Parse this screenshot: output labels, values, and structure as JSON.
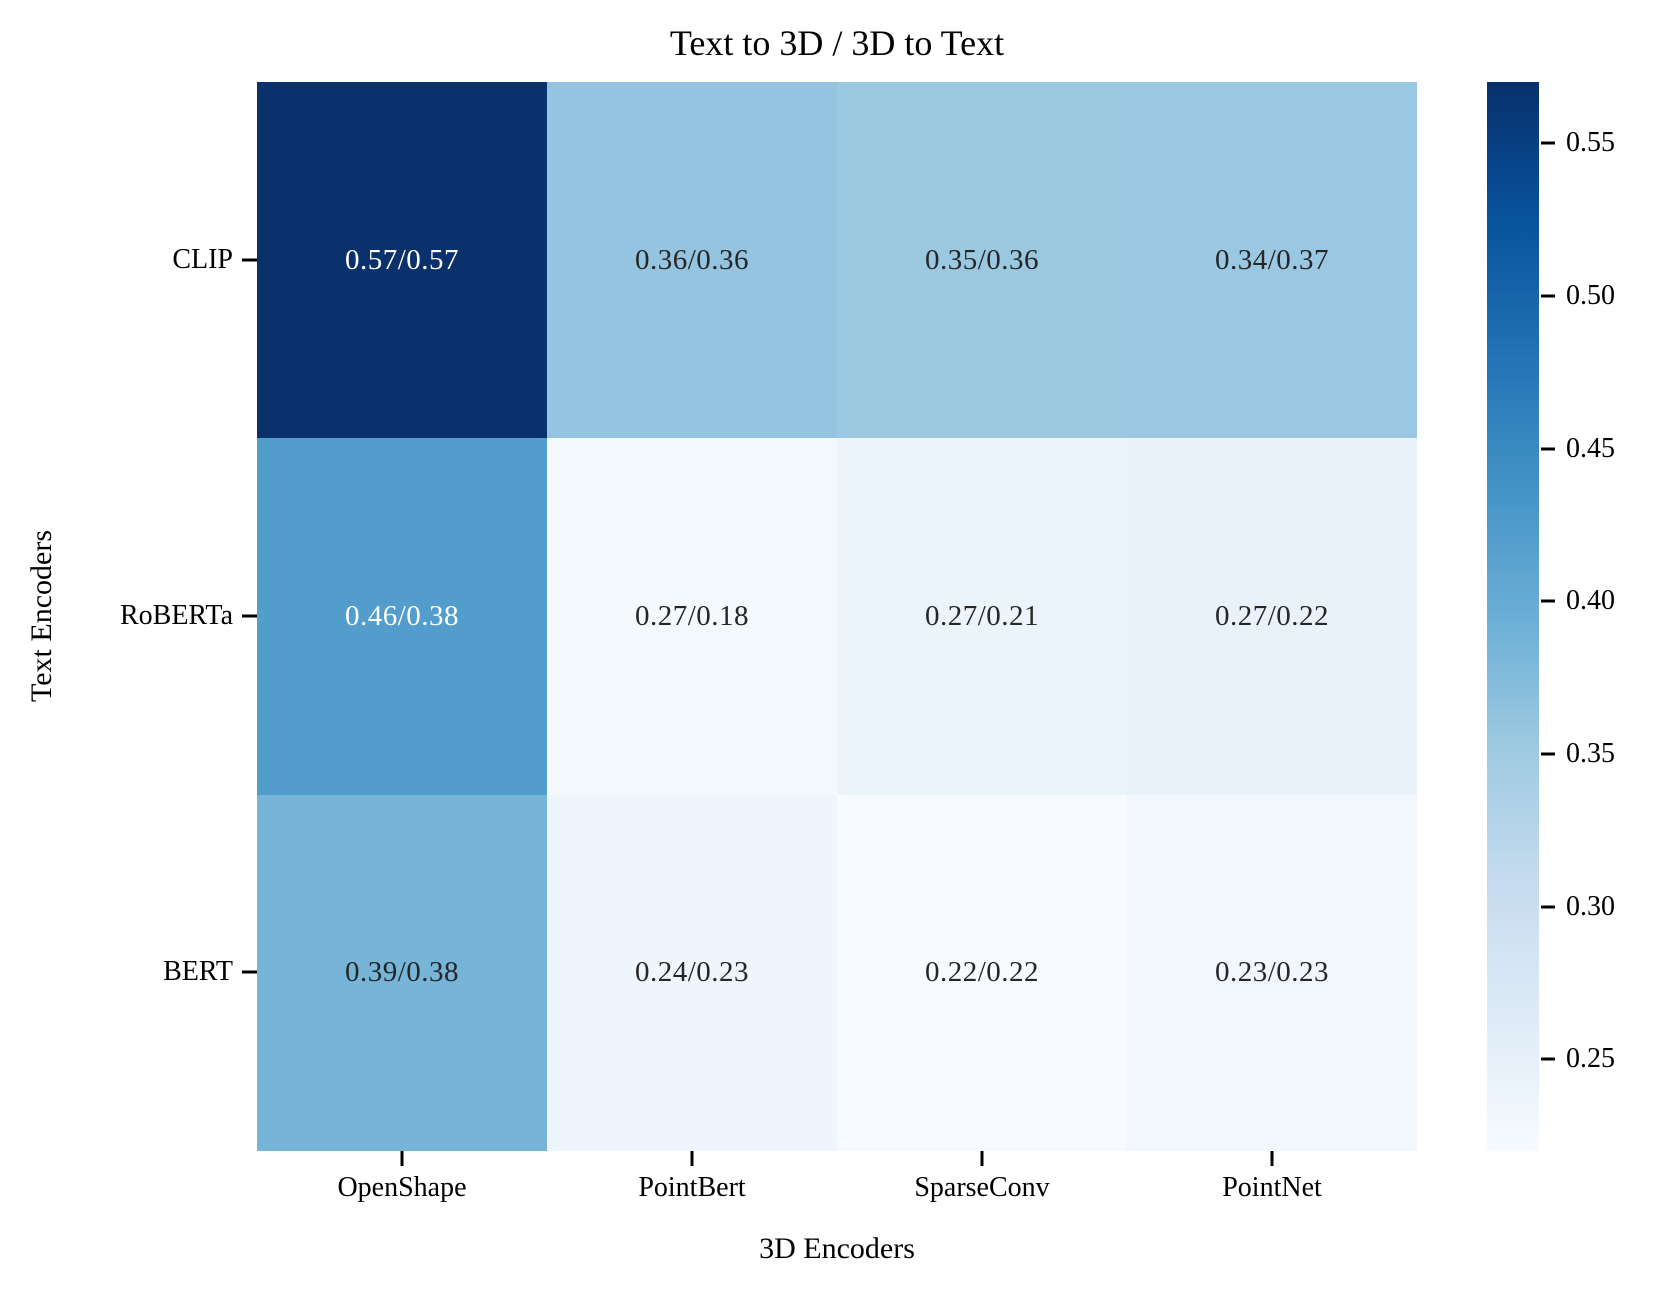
{
  "chart_data": {
    "type": "heatmap",
    "title": "Text to 3D / 3D to Text",
    "xlabel": "3D Encoders",
    "ylabel": "Text Encoders",
    "x_categories": [
      "OpenShape",
      "PointBert",
      "SparseConv",
      "PointNet"
    ],
    "y_categories": [
      "CLIP",
      "RoBERTa",
      "BERT"
    ],
    "series": [
      {
        "name": "Text to 3D",
        "values": [
          [
            0.57,
            0.36,
            0.35,
            0.34
          ],
          [
            0.46,
            0.27,
            0.27,
            0.27
          ],
          [
            0.39,
            0.24,
            0.22,
            0.23
          ]
        ]
      },
      {
        "name": "3D to Text",
        "values": [
          [
            0.57,
            0.36,
            0.36,
            0.37
          ],
          [
            0.38,
            0.18,
            0.21,
            0.22
          ],
          [
            0.38,
            0.23,
            0.22,
            0.23
          ]
        ]
      }
    ],
    "cell_label_format": "text_to_3d/3d_to_text",
    "colormap": "Blues",
    "vmin": 0.22,
    "vmax": 0.57,
    "colorbar_tick_labels": [
      "0.55",
      "0.50",
      "0.45",
      "0.40",
      "0.35",
      "0.30",
      "0.25"
    ],
    "legend_position": "colorbar-right",
    "grid": false
  },
  "cells": [
    [
      {
        "label": "0.57/0.57",
        "bg": "#0a316b",
        "fg": "#ffffff"
      },
      {
        "label": "0.36/0.36",
        "bg": "#94c4df",
        "fg": "#262626"
      },
      {
        "label": "0.35/0.36",
        "bg": "#9ac8e1",
        "fg": "#262626"
      },
      {
        "label": "0.34/0.37",
        "bg": "#9ac7e1",
        "fg": "#262626"
      }
    ],
    [
      {
        "label": "0.46/0.38",
        "bg": "#529dcc",
        "fg": "#ffffff"
      },
      {
        "label": "0.27/0.18",
        "bg": "#f4f9fe",
        "fg": "#262626"
      },
      {
        "label": "0.27/0.21",
        "bg": "#ecf4fb",
        "fg": "#262626"
      },
      {
        "label": "0.27/0.22",
        "bg": "#e9f2fa",
        "fg": "#262626"
      }
    ],
    [
      {
        "label": "0.39/0.38",
        "bg": "#76b4d8",
        "fg": "#262626"
      },
      {
        "label": "0.24/0.23",
        "bg": "#eef5fc",
        "fg": "#262626"
      },
      {
        "label": "0.22/0.22",
        "bg": "#f7fbff",
        "fg": "#262626"
      },
      {
        "label": "0.23/0.23",
        "bg": "#f1f7fd",
        "fg": "#262626"
      }
    ]
  ],
  "colorbar": {
    "gradient_stops": [
      {
        "color": "#08306b",
        "pct": 0
      },
      {
        "color": "#08519c",
        "pct": 12.5
      },
      {
        "color": "#2171b5",
        "pct": 25
      },
      {
        "color": "#4292c6",
        "pct": 37.5
      },
      {
        "color": "#6baed6",
        "pct": 50
      },
      {
        "color": "#9ecae1",
        "pct": 62.5
      },
      {
        "color": "#c6dbef",
        "pct": 75
      },
      {
        "color": "#deebf7",
        "pct": 87.5
      },
      {
        "color": "#f7fbff",
        "pct": 100
      }
    ],
    "ticks": [
      {
        "label": "0.55",
        "pct": 5.71
      },
      {
        "label": "0.50",
        "pct": 20.0
      },
      {
        "label": "0.45",
        "pct": 34.29
      },
      {
        "label": "0.40",
        "pct": 48.57
      },
      {
        "label": "0.35",
        "pct": 62.86
      },
      {
        "label": "0.30",
        "pct": 77.14
      },
      {
        "label": "0.25",
        "pct": 91.43
      }
    ]
  }
}
